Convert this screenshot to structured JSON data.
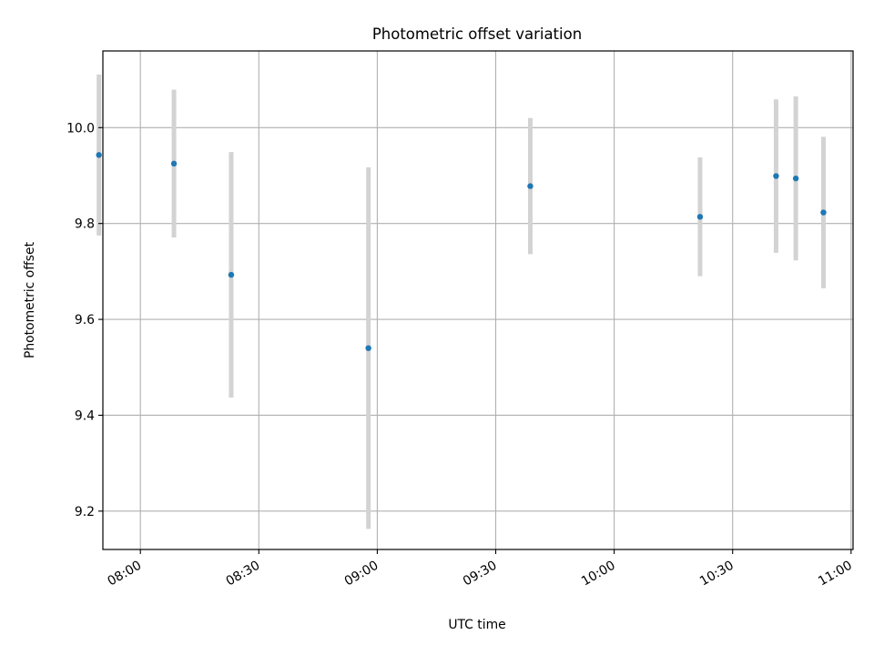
{
  "chart_data": {
    "type": "scatter",
    "title": "Photometric offset variation",
    "xlabel": "UTC time",
    "ylabel": "Photometric offset",
    "x_ticks": [
      "08:00",
      "08:30",
      "09:00",
      "09:30",
      "10:00",
      "10:30",
      "11:00"
    ],
    "y_ticks": [
      "9.2",
      "9.4",
      "9.6",
      "9.8",
      "10.0"
    ],
    "x_range": [
      "07:50:30",
      "11:00:30"
    ],
    "y_range": [
      9.12,
      10.16
    ],
    "grid": true,
    "marker_color": "#1f77b4",
    "errorbar_color": "#d3d3d3",
    "points": [
      {
        "time": "07:49:30",
        "value": 9.943,
        "error": 0.168
      },
      {
        "time": "08:08:30",
        "value": 9.925,
        "error": 0.154
      },
      {
        "time": "08:23:00",
        "value": 9.693,
        "error": 0.256
      },
      {
        "time": "08:57:45",
        "value": 9.54,
        "error": 0.377
      },
      {
        "time": "09:38:45",
        "value": 9.878,
        "error": 0.142
      },
      {
        "time": "10:21:45",
        "value": 9.814,
        "error": 0.124
      },
      {
        "time": "10:41:00",
        "value": 9.899,
        "error": 0.16
      },
      {
        "time": "10:46:00",
        "value": 9.894,
        "error": 0.171
      },
      {
        "time": "10:53:00",
        "value": 9.823,
        "error": 0.158
      }
    ]
  }
}
